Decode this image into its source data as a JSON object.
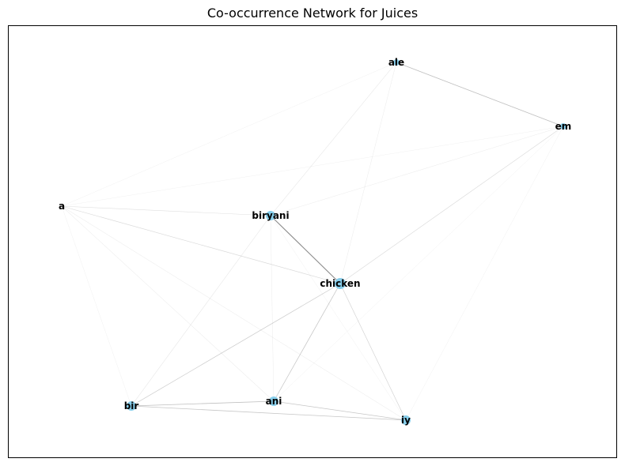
{
  "title": "Co-occurrence Network for Juices",
  "colors": {
    "node": "#87CEEB",
    "edge": "#808080",
    "frame": "#000000"
  },
  "nodes": [
    {
      "id": "a",
      "label": "a",
      "size": 0
    },
    {
      "id": "biryani",
      "label": "biryani",
      "size": 2
    },
    {
      "id": "chicken",
      "label": "chicken",
      "size": 3
    },
    {
      "id": "ale",
      "label": "ale",
      "size": 1
    },
    {
      "id": "em",
      "label": "em",
      "size": 1
    },
    {
      "id": "bir",
      "label": "bir",
      "size": 2
    },
    {
      "id": "ani",
      "label": "ani",
      "size": 2
    },
    {
      "id": "iy",
      "label": "iy",
      "size": 2
    }
  ],
  "edges": [
    {
      "source": "biryani",
      "target": "chicken",
      "weight": 0.9
    },
    {
      "source": "ale",
      "target": "em",
      "weight": 0.5
    },
    {
      "source": "bir",
      "target": "ani",
      "weight": 0.5
    },
    {
      "source": "bir",
      "target": "iy",
      "weight": 0.45
    },
    {
      "source": "ani",
      "target": "iy",
      "weight": 0.45
    },
    {
      "source": "chicken",
      "target": "ani",
      "weight": 0.45
    },
    {
      "source": "chicken",
      "target": "bir",
      "weight": 0.4
    },
    {
      "source": "chicken",
      "target": "iy",
      "weight": 0.35
    },
    {
      "source": "chicken",
      "target": "em",
      "weight": 0.3
    },
    {
      "source": "a",
      "target": "chicken",
      "weight": 0.3
    },
    {
      "source": "a",
      "target": "biryani",
      "weight": 0.25
    },
    {
      "source": "ale",
      "target": "biryani",
      "weight": 0.2
    },
    {
      "source": "ale",
      "target": "chicken",
      "weight": 0.15
    },
    {
      "source": "ale",
      "target": "a",
      "weight": 0.1
    },
    {
      "source": "em",
      "target": "a",
      "weight": 0.1
    },
    {
      "source": "em",
      "target": "biryani",
      "weight": 0.15
    },
    {
      "source": "em",
      "target": "ani",
      "weight": 0.1
    },
    {
      "source": "em",
      "target": "iy",
      "weight": 0.08
    },
    {
      "source": "biryani",
      "target": "bir",
      "weight": 0.2
    },
    {
      "source": "biryani",
      "target": "ani",
      "weight": 0.15
    },
    {
      "source": "biryani",
      "target": "iy",
      "weight": 0.12
    },
    {
      "source": "a",
      "target": "bir",
      "weight": 0.12
    },
    {
      "source": "a",
      "target": "ani",
      "weight": 0.15
    },
    {
      "source": "a",
      "target": "iy",
      "weight": 0.15
    }
  ]
}
